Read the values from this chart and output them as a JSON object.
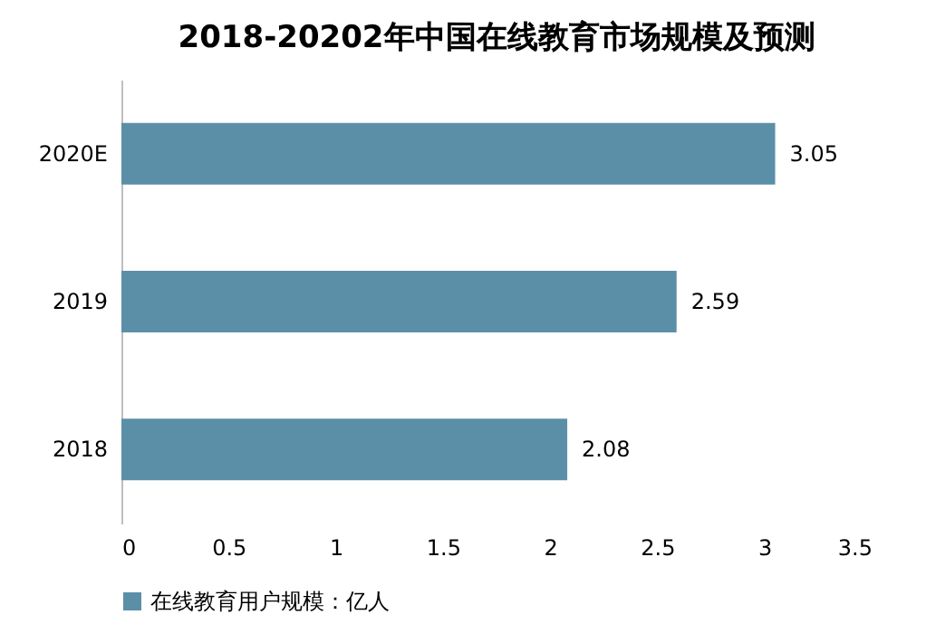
{
  "chart_data": {
    "type": "bar",
    "orientation": "horizontal",
    "title": "2018-20202年中国在线教育市场规模及预测",
    "categories": [
      "2020E",
      "2019",
      "2018"
    ],
    "series": [
      {
        "name": "在线教育用户规模：亿人",
        "color": "#5b8fa8",
        "values": [
          3.05,
          2.59,
          2.08
        ]
      }
    ],
    "xlim": [
      0,
      3.5
    ],
    "xticks": [
      0,
      0.5,
      1,
      1.5,
      2,
      2.5,
      3,
      3.5
    ],
    "data_labels": true,
    "grid": false,
    "legend": "bottom"
  }
}
